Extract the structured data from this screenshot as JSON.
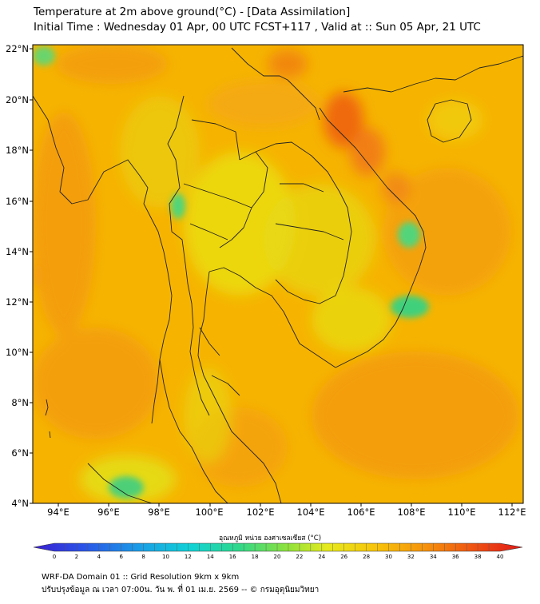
{
  "header": {
    "title_line1": "Temperature at 2m above ground(°C) - [Data Assimilation]",
    "title_line2": "Initial Time : Wednesday 01 Apr, 00 UTC FCST+117 , Valid at :: Sun 05 Apr, 21 UTC"
  },
  "map": {
    "lat_ticks": [
      "4°N",
      "6°N",
      "8°N",
      "10°N",
      "12°N",
      "14°N",
      "16°N",
      "18°N",
      "20°N",
      "22°N"
    ],
    "lon_ticks": [
      "94°E",
      "96°E",
      "98°E",
      "100°E",
      "102°E",
      "104°E",
      "106°E",
      "108°E",
      "110°E",
      "112°E"
    ],
    "colors": {
      "background_field": "#f6b600",
      "warm": "#f39a10",
      "hot": "#ee5a10",
      "cool": "#3ed37a",
      "mild": "#e2e415",
      "border": "#222222"
    }
  },
  "colorbar": {
    "title": "อุณหภูมิ หน่วย องศาเซลเซียส (°C)",
    "ticks": [
      "0",
      "2",
      "4",
      "6",
      "8",
      "10",
      "12",
      "14",
      "16",
      "18",
      "20",
      "22",
      "24",
      "26",
      "28",
      "30",
      "32",
      "34",
      "36",
      "38",
      "40"
    ]
  },
  "footer": {
    "line1": "WRF-DA Domain 01 :: Grid Resolution 9km x 9km",
    "line2": "ปรับปรุงข้อมูล ณ เวลา 07:00น. วัน พ. ที่ 01 เม.ย. 2569 -- © กรมอุตุนิยมวิทยา"
  }
}
